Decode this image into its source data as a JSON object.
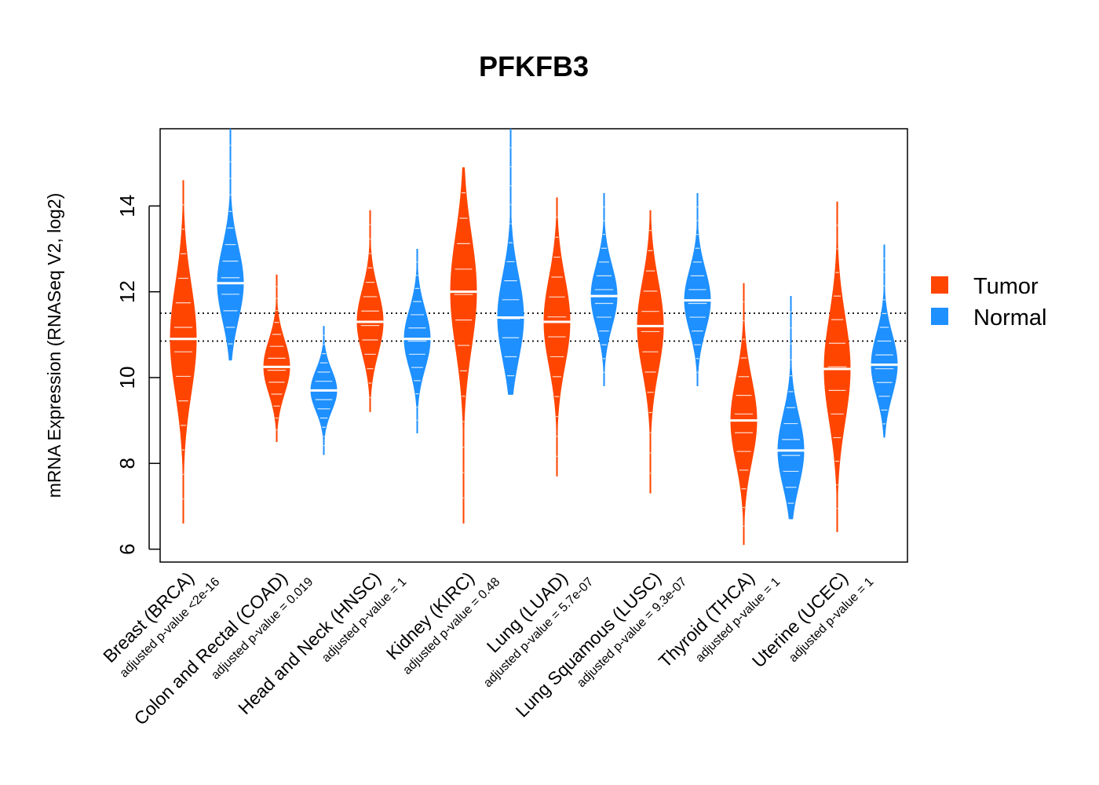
{
  "chart_data": {
    "type": "violin",
    "title": "PFKFB3",
    "ylabel": "mRNA Expression (RNASeq V2, log2)",
    "xlabel": "",
    "ylim": [
      5.7,
      15.8
    ],
    "yticks": [
      6,
      8,
      10,
      12,
      14
    ],
    "reference_lines": [
      11.5,
      10.85
    ],
    "legend": {
      "position": "right",
      "entries": [
        {
          "name": "Tumor",
          "color": "#FF4500"
        },
        {
          "name": "Normal",
          "color": "#1E90FF"
        }
      ]
    },
    "groups": [
      {
        "label": "Breast (BRCA)",
        "pvalue": "adjusted p-value <2e-16",
        "tumor": {
          "min": 6.6,
          "max": 14.6,
          "median": 10.9
        },
        "normal": {
          "min": 10.4,
          "max": 15.8,
          "median": 12.2
        }
      },
      {
        "label": "Colon and Rectal (COAD)",
        "pvalue": "adjusted p-value = 0.019",
        "tumor": {
          "min": 8.5,
          "max": 12.4,
          "median": 10.25
        },
        "normal": {
          "min": 8.2,
          "max": 11.2,
          "median": 9.7
        }
      },
      {
        "label": "Head and Neck (HNSC)",
        "pvalue": "adjusted p-value = 1",
        "tumor": {
          "min": 9.2,
          "max": 13.9,
          "median": 11.3
        },
        "normal": {
          "min": 8.7,
          "max": 13.0,
          "median": 10.9
        }
      },
      {
        "label": "Kidney (KIRC)",
        "pvalue": "adjusted p-value = 0.48",
        "tumor": {
          "min": 6.6,
          "max": 14.9,
          "median": 12.0
        },
        "normal": {
          "min": 9.6,
          "max": 15.8,
          "median": 11.4
        }
      },
      {
        "label": "Lung (LUAD)",
        "pvalue": "adjusted p-value = 5.7e-07",
        "tumor": {
          "min": 7.7,
          "max": 14.2,
          "median": 11.3
        },
        "normal": {
          "min": 9.8,
          "max": 14.3,
          "median": 11.9
        }
      },
      {
        "label": "Lung Squamous (LUSC)",
        "pvalue": "adjusted p-value = 9.3e-07",
        "tumor": {
          "min": 7.3,
          "max": 13.9,
          "median": 11.2
        },
        "normal": {
          "min": 9.8,
          "max": 14.3,
          "median": 11.8
        }
      },
      {
        "label": "Thyroid (THCA)",
        "pvalue": "adjusted p-value = 1",
        "tumor": {
          "min": 6.1,
          "max": 12.2,
          "median": 9.0
        },
        "normal": {
          "min": 6.7,
          "max": 11.9,
          "median": 8.3
        }
      },
      {
        "label": "Uterine (UCEC)",
        "pvalue": "adjusted p-value = 1",
        "tumor": {
          "min": 6.4,
          "max": 14.1,
          "median": 10.2
        },
        "normal": {
          "min": 8.6,
          "max": 13.1,
          "median": 10.3
        }
      }
    ]
  }
}
